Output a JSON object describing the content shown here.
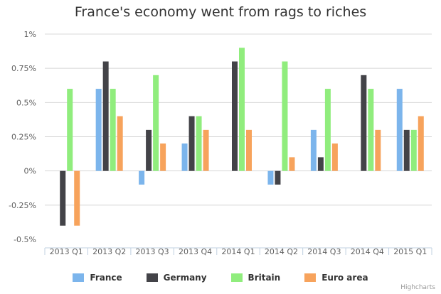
{
  "chart_data": {
    "type": "bar",
    "title": "France's economy went from rags to riches",
    "xlabel": "",
    "ylabel": "",
    "ylim": [
      -0.5,
      1
    ],
    "yticks": [
      -0.5,
      -0.25,
      0,
      0.25,
      0.5,
      0.75,
      1
    ],
    "ytick_labels": [
      "-0.5%",
      "-0.25%",
      "0%",
      "0.25%",
      "0.5%",
      "0.75%",
      "1%"
    ],
    "grid": true,
    "legend_position": "bottom",
    "categories": [
      "2013 Q1",
      "2013 Q2",
      "2013 Q3",
      "2013 Q4",
      "2014 Q1",
      "2014 Q2",
      "2014 Q3",
      "2014 Q4",
      "2015 Q1"
    ],
    "series": [
      {
        "name": "France",
        "color": "#7cb5ec",
        "values": [
          0,
          0.6,
          -0.1,
          0.2,
          0,
          -0.1,
          0.3,
          0,
          0.6
        ]
      },
      {
        "name": "Germany",
        "color": "#434348",
        "values": [
          -0.4,
          0.8,
          0.3,
          0.4,
          0.8,
          -0.1,
          0.1,
          0.7,
          0.3
        ]
      },
      {
        "name": "Britain",
        "color": "#90ed7d",
        "values": [
          0.6,
          0.6,
          0.7,
          0.4,
          0.9,
          0.8,
          0.6,
          0.6,
          0.3
        ]
      },
      {
        "name": "Euro area",
        "color": "#f7a35c",
        "values": [
          -0.4,
          0.4,
          0.2,
          0.3,
          0.3,
          0.1,
          0.2,
          0.3,
          0.4
        ]
      }
    ]
  },
  "credits": "Highcharts"
}
